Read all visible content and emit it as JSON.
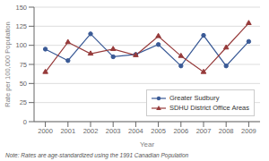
{
  "chart_data": {
    "type": "line",
    "x": [
      2000,
      2001,
      2002,
      2003,
      2004,
      2005,
      2006,
      2007,
      2008,
      2009
    ],
    "series": [
      {
        "name": "Greater Sudbury",
        "color": "#3a5a96",
        "marker": "circle",
        "values": [
          95,
          80,
          115,
          85,
          88,
          101,
          73,
          113,
          73,
          105
        ]
      },
      {
        "name": "SDHU District Office Areas",
        "color": "#963a3a",
        "marker": "triangle",
        "values": [
          65,
          104,
          89,
          95,
          87,
          112,
          86,
          65,
          97,
          129
        ]
      }
    ],
    "xlabel": "Year",
    "ylabel": "Rate per 100,000 Population",
    "xlim": [
      1999.5,
      2009.5
    ],
    "xticks": [
      2000,
      2001,
      2002,
      2003,
      2004,
      2005,
      2006,
      2007,
      2008,
      2009
    ],
    "ylim": [
      0,
      150
    ],
    "yticks": [
      0,
      25,
      50,
      75,
      100,
      125,
      150
    ],
    "grid": "y",
    "legend": "lower right",
    "annotations": [
      "Note: Rates are age-standardized using the 1991 Canadian Population"
    ]
  }
}
